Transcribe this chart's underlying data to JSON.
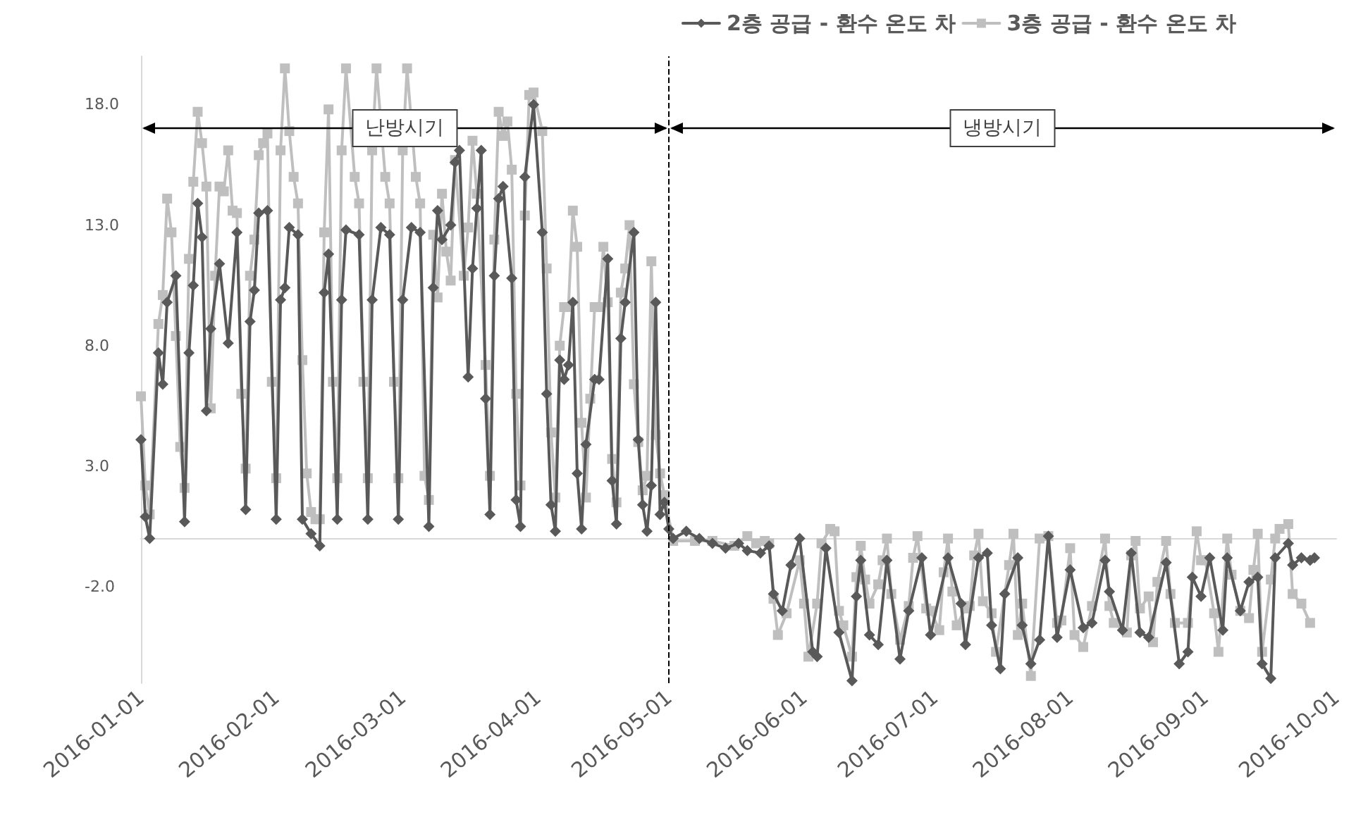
{
  "chart_data": {
    "type": "line",
    "xlim": [
      "2016-01-01",
      "2016-10-01"
    ],
    "xticks": [
      "2016-01-01",
      "2016-02-01",
      "2016-03-01",
      "2016-04-01",
      "2016-05-01",
      "2016-06-01",
      "2016-07-01",
      "2016-08-01",
      "2016-09-01",
      "2016-10-01"
    ],
    "ylim": [
      -6,
      20
    ],
    "yticks": [
      {
        "value": -2,
        "label": "-2.0"
      },
      {
        "value": 3,
        "label": "3.0"
      },
      {
        "value": 8,
        "label": "8.0"
      },
      {
        "value": 13,
        "label": "13.0"
      },
      {
        "value": 18,
        "label": "18.0"
      }
    ],
    "grid": false,
    "legend": "top right",
    "line_style": "solid",
    "ref_lines": [
      {
        "axis": "x",
        "value": "2016-05-01",
        "color": "#000000",
        "line_style": "dashed"
      }
    ],
    "annotations": [
      "난방시기",
      "냉방시기"
    ],
    "series": [
      {
        "name": "2층 공급 - 환수 온도 차",
        "color": "#595959",
        "marker": "diamond",
        "x": [
          "2016-01-01",
          "2016-01-02",
          "2016-01-03",
          "2016-01-05",
          "2016-01-06",
          "2016-01-07",
          "2016-01-09",
          "2016-01-11",
          "2016-01-12",
          "2016-01-13",
          "2016-01-14",
          "2016-01-15",
          "2016-01-16",
          "2016-01-17",
          "2016-01-19",
          "2016-01-21",
          "2016-01-23",
          "2016-01-25",
          "2016-01-26",
          "2016-01-27",
          "2016-01-28",
          "2016-01-30",
          "2016-02-01",
          "2016-02-02",
          "2016-02-03",
          "2016-02-04",
          "2016-02-06",
          "2016-02-07",
          "2016-02-09",
          "2016-02-11",
          "2016-02-12",
          "2016-02-13",
          "2016-02-15",
          "2016-02-16",
          "2016-02-17",
          "2016-02-20",
          "2016-02-22",
          "2016-02-23",
          "2016-02-25",
          "2016-02-27",
          "2016-02-29",
          "2016-03-01",
          "2016-03-03",
          "2016-03-05",
          "2016-03-07",
          "2016-03-08",
          "2016-03-09",
          "2016-03-10",
          "2016-03-12",
          "2016-03-13",
          "2016-03-14",
          "2016-03-16",
          "2016-03-17",
          "2016-03-18",
          "2016-03-19",
          "2016-03-20",
          "2016-03-21",
          "2016-03-22",
          "2016-03-23",
          "2016-03-24",
          "2016-03-26",
          "2016-03-27",
          "2016-03-28",
          "2016-03-29",
          "2016-03-31",
          "2016-04-02",
          "2016-04-03",
          "2016-04-04",
          "2016-04-05",
          "2016-04-06",
          "2016-04-07",
          "2016-04-08",
          "2016-04-09",
          "2016-04-10",
          "2016-04-11",
          "2016-04-12",
          "2016-04-14",
          "2016-04-15",
          "2016-04-17",
          "2016-04-18",
          "2016-04-19",
          "2016-04-20",
          "2016-04-21",
          "2016-04-23",
          "2016-04-24",
          "2016-04-25",
          "2016-04-26",
          "2016-04-27",
          "2016-04-28",
          "2016-04-29",
          "2016-04-30",
          "2016-05-01",
          "2016-05-02",
          "2016-05-05",
          "2016-05-08",
          "2016-05-11",
          "2016-05-14",
          "2016-05-17",
          "2016-05-19",
          "2016-05-22",
          "2016-05-24",
          "2016-05-25",
          "2016-05-27",
          "2016-05-29",
          "2016-05-31",
          "2016-06-03",
          "2016-06-04",
          "2016-06-06",
          "2016-06-09",
          "2016-06-12",
          "2016-06-13",
          "2016-06-14",
          "2016-06-16",
          "2016-06-18",
          "2016-06-20",
          "2016-06-23",
          "2016-06-25",
          "2016-06-28",
          "2016-06-30",
          "2016-07-04",
          "2016-07-07",
          "2016-07-08",
          "2016-07-11",
          "2016-07-13",
          "2016-07-14",
          "2016-07-16",
          "2016-07-17",
          "2016-07-20",
          "2016-07-21",
          "2016-07-23",
          "2016-07-25",
          "2016-07-27",
          "2016-07-29",
          "2016-08-01",
          "2016-08-04",
          "2016-08-06",
          "2016-08-09",
          "2016-08-10",
          "2016-08-13",
          "2016-08-15",
          "2016-08-17",
          "2016-08-19",
          "2016-08-23",
          "2016-08-26",
          "2016-08-28",
          "2016-08-29",
          "2016-08-31",
          "2016-09-02",
          "2016-09-05",
          "2016-09-06",
          "2016-09-09",
          "2016-09-11",
          "2016-09-13",
          "2016-09-14",
          "2016-09-16",
          "2016-09-17",
          "2016-09-20",
          "2016-09-21",
          "2016-09-23",
          "2016-09-25",
          "2016-09-26"
        ],
        "values": [
          4.1,
          0.9,
          0.0,
          7.7,
          6.4,
          9.8,
          10.9,
          0.7,
          7.7,
          10.5,
          13.9,
          12.5,
          5.3,
          8.7,
          11.4,
          8.1,
          12.7,
          1.2,
          9.0,
          10.3,
          13.5,
          13.6,
          0.8,
          9.9,
          10.4,
          12.9,
          12.6,
          0.8,
          0.2,
          -0.3,
          10.2,
          11.8,
          0.8,
          9.9,
          12.8,
          12.6,
          0.8,
          9.9,
          12.9,
          12.6,
          0.8,
          9.9,
          12.9,
          12.7,
          0.5,
          10.4,
          13.6,
          12.4,
          13.0,
          15.6,
          16.1,
          6.7,
          11.2,
          13.7,
          16.1,
          5.8,
          1.0,
          10.9,
          14.1,
          14.6,
          10.8,
          1.6,
          0.5,
          15.0,
          18.0,
          12.7,
          6.0,
          1.4,
          0.3,
          7.4,
          6.6,
          7.2,
          9.8,
          2.7,
          0.4,
          3.9,
          6.6,
          6.6,
          11.6,
          2.4,
          0.6,
          8.3,
          9.8,
          12.7,
          4.1,
          1.4,
          0.3,
          2.2,
          9.8,
          1.0,
          1.5,
          0.4,
          0.0,
          0.3,
          0.0,
          -0.2,
          -0.4,
          -0.2,
          -0.5,
          -0.6,
          -0.3,
          -2.3,
          -3.0,
          -1.1,
          0.0,
          -4.7,
          -4.9,
          -0.4,
          -3.9,
          -5.9,
          -2.4,
          -0.9,
          -4.0,
          -4.4,
          -0.9,
          -5.0,
          -3.0,
          -0.8,
          -4.0,
          -0.8,
          -2.7,
          -4.4,
          -0.8,
          -0.6,
          -3.6,
          -5.4,
          -2.3,
          -0.8,
          -3.6,
          -5.2,
          -4.2,
          0.1,
          -4.1,
          -1.3,
          -3.7,
          -3.5,
          -0.9,
          -2.2,
          -3.8,
          -0.6,
          -3.9,
          -4.1,
          -1.0,
          -5.2,
          -4.7,
          -1.6,
          -2.4,
          -0.8,
          -3.8,
          -0.8,
          -3.0,
          -1.8,
          -1.6,
          -5.2,
          -5.8,
          -0.8,
          -0.2,
          -1.1,
          -0.8,
          -0.9,
          -0.8
        ]
      },
      {
        "name": "3층 공급 - 환수 온도 차",
        "color": "#bfbfbf",
        "marker": "square",
        "x": [
          "2016-01-01",
          "2016-01-02",
          "2016-01-03",
          "2016-01-05",
          "2016-01-06",
          "2016-01-07",
          "2016-01-08",
          "2016-01-09",
          "2016-01-10",
          "2016-01-11",
          "2016-01-12",
          "2016-01-13",
          "2016-01-14",
          "2016-01-15",
          "2016-01-16",
          "2016-01-17",
          "2016-01-18",
          "2016-01-19",
          "2016-01-20",
          "2016-01-21",
          "2016-01-22",
          "2016-01-23",
          "2016-01-24",
          "2016-01-25",
          "2016-01-26",
          "2016-01-27",
          "2016-01-28",
          "2016-01-29",
          "2016-01-30",
          "2016-01-31",
          "2016-02-01",
          "2016-02-02",
          "2016-02-03",
          "2016-02-04",
          "2016-02-05",
          "2016-02-06",
          "2016-02-07",
          "2016-02-08",
          "2016-02-09",
          "2016-02-10",
          "2016-02-11",
          "2016-02-12",
          "2016-02-13",
          "2016-02-14",
          "2016-02-15",
          "2016-02-16",
          "2016-02-17",
          "2016-02-19",
          "2016-02-20",
          "2016-02-21",
          "2016-02-22",
          "2016-02-23",
          "2016-02-24",
          "2016-02-26",
          "2016-02-27",
          "2016-02-28",
          "2016-02-29",
          "2016-03-01",
          "2016-03-02",
          "2016-03-04",
          "2016-03-05",
          "2016-03-06",
          "2016-03-07",
          "2016-03-08",
          "2016-03-09",
          "2016-03-10",
          "2016-03-11",
          "2016-03-12",
          "2016-03-13",
          "2016-03-15",
          "2016-03-16",
          "2016-03-17",
          "2016-03-18",
          "2016-03-20",
          "2016-03-21",
          "2016-03-22",
          "2016-03-23",
          "2016-03-24",
          "2016-03-25",
          "2016-03-26",
          "2016-03-27",
          "2016-03-28",
          "2016-03-29",
          "2016-03-30",
          "2016-03-31",
          "2016-04-02",
          "2016-04-03",
          "2016-04-04",
          "2016-04-05",
          "2016-04-06",
          "2016-04-07",
          "2016-04-08",
          "2016-04-09",
          "2016-04-10",
          "2016-04-11",
          "2016-04-12",
          "2016-04-13",
          "2016-04-14",
          "2016-04-15",
          "2016-04-16",
          "2016-04-17",
          "2016-04-18",
          "2016-04-19",
          "2016-04-20",
          "2016-04-21",
          "2016-04-22",
          "2016-04-23",
          "2016-04-24",
          "2016-04-25",
          "2016-04-26",
          "2016-04-27",
          "2016-04-28",
          "2016-04-29",
          "2016-04-30",
          "2016-05-02",
          "2016-05-07",
          "2016-05-11",
          "2016-05-16",
          "2016-05-19",
          "2016-05-21",
          "2016-05-23",
          "2016-05-24",
          "2016-05-25",
          "2016-05-26",
          "2016-05-28",
          "2016-05-31",
          "2016-06-01",
          "2016-06-02",
          "2016-06-04",
          "2016-06-05",
          "2016-06-07",
          "2016-06-08",
          "2016-06-09",
          "2016-06-10",
          "2016-06-12",
          "2016-06-13",
          "2016-06-14",
          "2016-06-15",
          "2016-06-16",
          "2016-06-18",
          "2016-06-19",
          "2016-06-20",
          "2016-06-21",
          "2016-06-23",
          "2016-06-25",
          "2016-06-26",
          "2016-06-27",
          "2016-06-29",
          "2016-06-30",
          "2016-07-02",
          "2016-07-03",
          "2016-07-04",
          "2016-07-05",
          "2016-07-06",
          "2016-07-08",
          "2016-07-09",
          "2016-07-10",
          "2016-07-11",
          "2016-07-12",
          "2016-07-14",
          "2016-07-15",
          "2016-07-18",
          "2016-07-19",
          "2016-07-20",
          "2016-07-21",
          "2016-07-23",
          "2016-07-25",
          "2016-07-27",
          "2016-07-29",
          "2016-07-30",
          "2016-08-01",
          "2016-08-02",
          "2016-08-04",
          "2016-08-06",
          "2016-08-09",
          "2016-08-10",
          "2016-08-11",
          "2016-08-14",
          "2016-08-15",
          "2016-08-16",
          "2016-08-17",
          "2016-08-19",
          "2016-08-20",
          "2016-08-21",
          "2016-08-23",
          "2016-08-24",
          "2016-08-25",
          "2016-08-28",
          "2016-08-30",
          "2016-08-31",
          "2016-09-01",
          "2016-09-03",
          "2016-09-04",
          "2016-09-06",
          "2016-09-07",
          "2016-09-09",
          "2016-09-11",
          "2016-09-12",
          "2016-09-13",
          "2016-09-14",
          "2016-09-16",
          "2016-09-17",
          "2016-09-18",
          "2016-09-20",
          "2016-09-21",
          "2016-09-23",
          "2016-09-25"
        ],
        "values": [
          5.9,
          2.2,
          1.0,
          8.9,
          10.1,
          14.1,
          12.7,
          8.4,
          3.8,
          2.1,
          11.6,
          14.8,
          17.7,
          16.4,
          14.6,
          5.4,
          10.9,
          14.6,
          14.4,
          16.1,
          13.6,
          13.5,
          6.0,
          2.9,
          10.9,
          12.4,
          15.9,
          16.4,
          16.8,
          6.5,
          2.5,
          16.1,
          19.5,
          16.9,
          15.0,
          13.9,
          7.4,
          2.7,
          1.1,
          0.8,
          0.8,
          12.7,
          17.8,
          6.5,
          2.5,
          16.1,
          19.5,
          15.0,
          13.9,
          6.5,
          2.5,
          16.1,
          19.5,
          15.0,
          13.9,
          6.5,
          2.5,
          16.1,
          19.5,
          15.0,
          13.9,
          2.6,
          1.6,
          12.6,
          10.0,
          14.3,
          11.9,
          10.7,
          15.7,
          10.9,
          12.9,
          16.5,
          14.3,
          7.2,
          2.6,
          12.4,
          17.7,
          16.7,
          17.3,
          15.3,
          6.0,
          2.2,
          13.4,
          18.4,
          18.5,
          16.9,
          11.2,
          4.4,
          1.7,
          8.0,
          9.6,
          9.6,
          13.6,
          12.1,
          4.8,
          1.7,
          5.8,
          9.6,
          9.6,
          12.1,
          9.8,
          3.3,
          1.5,
          10.2,
          11.2,
          13.0,
          6.4,
          4.0,
          2.0,
          2.6,
          11.5,
          4.3,
          2.7,
          1.8,
          -0.1,
          -0.1,
          -0.1,
          -0.3,
          0.1,
          -0.2,
          -0.1,
          -0.2,
          -2.5,
          -4.0,
          -3.1,
          -0.9,
          -2.7,
          -4.9,
          -2.7,
          -0.2,
          0.4,
          0.3,
          -3.0,
          -3.6,
          -4.9,
          -1.6,
          -0.3,
          -1.7,
          -2.7,
          -1.9,
          -0.9,
          0.0,
          -2.3,
          -4.2,
          -2.8,
          -0.8,
          0.1,
          -2.9,
          -3.0,
          -3.8,
          -1.4,
          0.0,
          -2.2,
          -3.6,
          -2.9,
          -2.8,
          -0.7,
          0.2,
          -2.6,
          -3.1,
          -4.7,
          -1.1,
          0.2,
          -4.0,
          -2.7,
          -5.7,
          0.0,
          0.1,
          -3.5,
          -3.4,
          -0.4,
          -4.0,
          -4.5,
          -2.8,
          0.0,
          -2.8,
          -3.5,
          -3.9,
          -0.7,
          -0.1,
          -2.9,
          -2.4,
          -4.3,
          -1.8,
          -0.1,
          -2.3,
          -3.5,
          -3.5,
          0.3,
          -0.9,
          -0.9,
          -3.1,
          -4.7,
          0.0,
          -1.5,
          -3.0,
          -3.3,
          -1.3,
          0.2,
          -4.7,
          -1.7,
          0.0,
          0.4,
          0.6,
          -2.3,
          -2.7,
          -3.5
        ]
      }
    ]
  }
}
